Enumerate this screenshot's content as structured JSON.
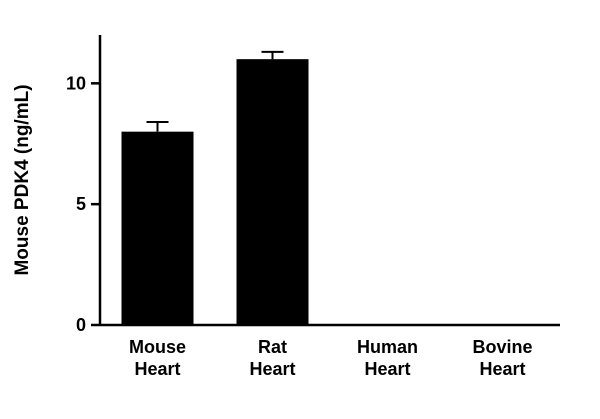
{
  "figure": {
    "background_color": "#ffffff",
    "bar_color": "#000000",
    "axis_color": "#000000"
  },
  "chart_data": {
    "type": "bar",
    "title": "",
    "categories": [
      "Mouse\nHeart",
      "Rat\nHeart",
      "Human\nHeart",
      "Bovine\nHeart"
    ],
    "values": [
      8.0,
      11.0,
      0,
      0
    ],
    "errors": [
      0.4,
      0.3,
      0,
      0
    ],
    "xlabel": "",
    "ylabel": "Mouse PDK4 (ng/mL)",
    "ylim": [
      0,
      12
    ],
    "yticks": [
      0,
      5,
      10
    ],
    "grid": "off",
    "legend": "none"
  }
}
